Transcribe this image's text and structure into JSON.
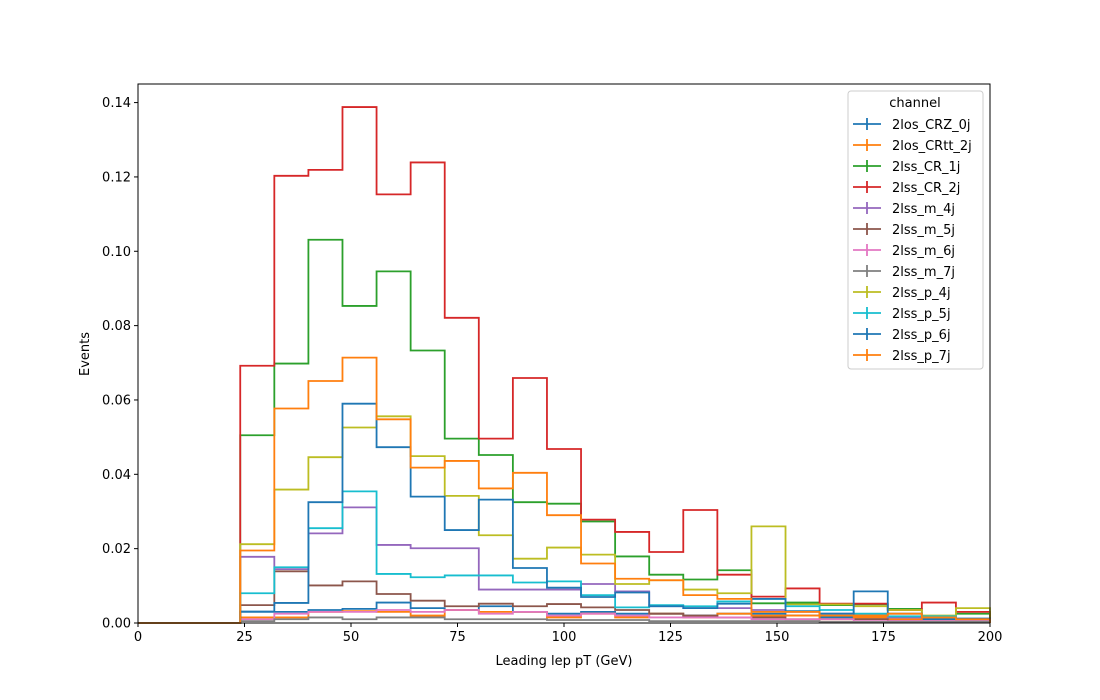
{
  "chart_data": {
    "type": "line",
    "style": "step histogram",
    "xlabel": "Leading lep pT (GeV)",
    "ylabel": "Events",
    "xlim": [
      0,
      200
    ],
    "ylim": [
      0,
      0.145
    ],
    "x_ticks": [
      0,
      25,
      50,
      75,
      100,
      125,
      150,
      175,
      200
    ],
    "y_ticks": [
      0.0,
      0.02,
      0.04,
      0.06,
      0.08,
      0.1,
      0.12,
      0.14
    ],
    "y_tick_labels": [
      "0.00",
      "0.02",
      "0.04",
      "0.06",
      "0.08",
      "0.10",
      "0.12",
      "0.14"
    ],
    "grid": false,
    "legend": {
      "title": "channel",
      "position": "top-right"
    },
    "bin_edges": [
      0,
      8,
      16,
      24,
      32,
      40,
      48,
      56,
      64,
      72,
      80,
      88,
      96,
      104,
      112,
      120,
      128,
      136,
      144,
      152,
      160,
      168,
      176,
      184,
      192,
      200
    ],
    "series": [
      {
        "name": "2los_CRZ_0j",
        "color": "#1f77b4",
        "values": [
          0,
          0,
          0,
          0.003,
          0.003,
          0.0035,
          0.0038,
          0.0055,
          0.004,
          0.0035,
          0.0045,
          0.003,
          0.0025,
          0.003,
          0.0025,
          0.0025,
          0.002,
          0.0025,
          0.0025,
          0.002,
          0.0015,
          0.0015,
          0.001,
          0.001,
          0.001
        ]
      },
      {
        "name": "2los_CRtt_2j",
        "color": "#ff7f0e",
        "values": [
          0,
          0,
          0,
          0.0015,
          0.0015,
          0.003,
          0.0032,
          0.003,
          0.002,
          0.0035,
          0.003,
          0.003,
          0.0015,
          0.0025,
          0.0015,
          0.0025,
          0.0015,
          0.0025,
          0.002,
          0.002,
          0.001,
          0.0015,
          0.001,
          0.0015,
          0.001
        ]
      },
      {
        "name": "2lss_CR_1j",
        "color": "#2ca02c",
        "values": [
          0,
          0,
          0,
          0.0505,
          0.0698,
          0.1031,
          0.0853,
          0.0946,
          0.0733,
          0.0496,
          0.0452,
          0.0325,
          0.0321,
          0.0273,
          0.0179,
          0.013,
          0.0117,
          0.0142,
          0.0053,
          0.0055,
          0.0048,
          0.005,
          0.0038,
          0.0018,
          0.0025
        ]
      },
      {
        "name": "2lss_CR_2j",
        "color": "#d62728",
        "values": [
          0,
          0,
          0,
          0.0692,
          0.1203,
          0.1219,
          0.1388,
          0.1153,
          0.1239,
          0.0821,
          0.0496,
          0.0659,
          0.0468,
          0.0278,
          0.0245,
          0.0191,
          0.0304,
          0.013,
          0.0071,
          0.0093,
          0.0052,
          0.0052,
          0.0035,
          0.0055,
          0.003
        ]
      },
      {
        "name": "2lss_m_4j",
        "color": "#9467bd",
        "values": [
          0,
          0,
          0,
          0.0178,
          0.0145,
          0.0241,
          0.0311,
          0.021,
          0.0201,
          0.0201,
          0.009,
          0.009,
          0.009,
          0.0105,
          0.0085,
          0.0045,
          0.004,
          0.004,
          0.0035,
          0.003,
          0.0025,
          0.002,
          0.0015,
          0.0015,
          0.001
        ]
      },
      {
        "name": "2lss_m_5j",
        "color": "#8c564b",
        "values": [
          0,
          0,
          0,
          0.0048,
          0.0139,
          0.0101,
          0.0112,
          0.0078,
          0.006,
          0.0045,
          0.0052,
          0.0045,
          0.0051,
          0.0042,
          0.0035,
          0.0025,
          0.002,
          0.0015,
          0.0015,
          0.001,
          0.001,
          0.001,
          0.0005,
          0.0005,
          0.0005
        ]
      },
      {
        "name": "2lss_m_6j",
        "color": "#e377c2",
        "values": [
          0,
          0,
          0,
          0.001,
          0.0025,
          0.003,
          0.003,
          0.0035,
          0.003,
          0.0035,
          0.0025,
          0.003,
          0.002,
          0.0025,
          0.002,
          0.0015,
          0.0015,
          0.0015,
          0.001,
          0.001,
          0.001,
          0.0005,
          0.0005,
          0.0005,
          0.0005
        ]
      },
      {
        "name": "2lss_m_7j",
        "color": "#7f7f7f",
        "values": [
          0,
          0,
          0,
          0.0005,
          0.001,
          0.0015,
          0.001,
          0.0015,
          0.0015,
          0.001,
          0.001,
          0.001,
          0.0008,
          0.0008,
          0.0008,
          0.0005,
          0.0005,
          0.0005,
          0.0005,
          0.0005,
          0.0003,
          0.0003,
          0.0003,
          0.0003,
          0.0003
        ]
      },
      {
        "name": "2lss_p_4j",
        "color": "#bcbd22",
        "values": [
          0,
          0,
          0,
          0.0212,
          0.0359,
          0.0446,
          0.0526,
          0.0556,
          0.0449,
          0.0342,
          0.0236,
          0.0173,
          0.0203,
          0.0184,
          0.0105,
          0.0115,
          0.009,
          0.008,
          0.026,
          0.005,
          0.005,
          0.0045,
          0.0035,
          0.002,
          0.004
        ]
      },
      {
        "name": "2lss_p_5j",
        "color": "#17becf",
        "values": [
          0,
          0,
          0,
          0.008,
          0.015,
          0.0255,
          0.0354,
          0.0132,
          0.0123,
          0.0128,
          0.0128,
          0.0109,
          0.0112,
          0.0075,
          0.0042,
          0.0048,
          0.0045,
          0.0058,
          0.0065,
          0.0045,
          0.0035,
          0.0025,
          0.0018,
          0.0018,
          0.001
        ]
      },
      {
        "name": "2lss_p_6j",
        "color": "#1f77b4",
        "values": [
          0,
          0,
          0,
          0.0031,
          0.0054,
          0.0325,
          0.059,
          0.0473,
          0.034,
          0.025,
          0.0332,
          0.0148,
          0.0095,
          0.007,
          0.0082,
          0.0045,
          0.004,
          0.0052,
          0.0065,
          0.0032,
          0.0025,
          0.0085,
          0.0025,
          0.0015,
          0.0012
        ]
      },
      {
        "name": "2lss_p_7j",
        "color": "#ff7f0e",
        "values": [
          0,
          0,
          0,
          0.0195,
          0.0577,
          0.0651,
          0.0714,
          0.0548,
          0.0418,
          0.0436,
          0.0362,
          0.0404,
          0.029,
          0.016,
          0.0119,
          0.0115,
          0.0075,
          0.0065,
          0.003,
          0.003,
          0.002,
          0.002,
          0.0025,
          0.0015,
          0.001
        ]
      }
    ]
  }
}
